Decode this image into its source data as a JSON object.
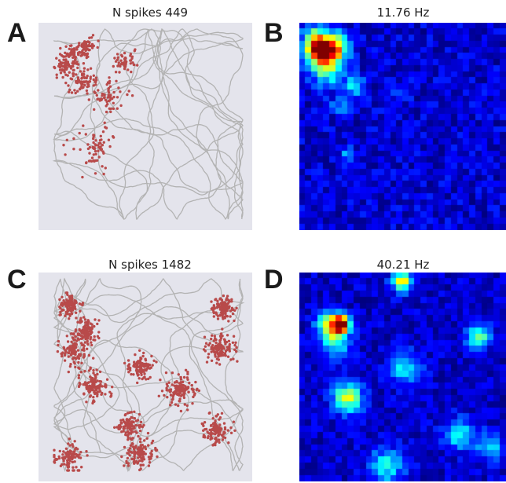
{
  "panels": {
    "A": {
      "letter": "A",
      "title": "N spikes 449"
    },
    "B": {
      "letter": "B",
      "title": "11.76 Hz"
    },
    "C": {
      "letter": "C",
      "title": "N spikes 1482"
    },
    "D": {
      "letter": "D",
      "title": "40.21 Hz"
    }
  },
  "colors": {
    "trajectory": "#b3b3b3",
    "arena_background": "#e4e4ec",
    "spike": "#b84a4a",
    "ratemap_background": "#00007f"
  }
}
